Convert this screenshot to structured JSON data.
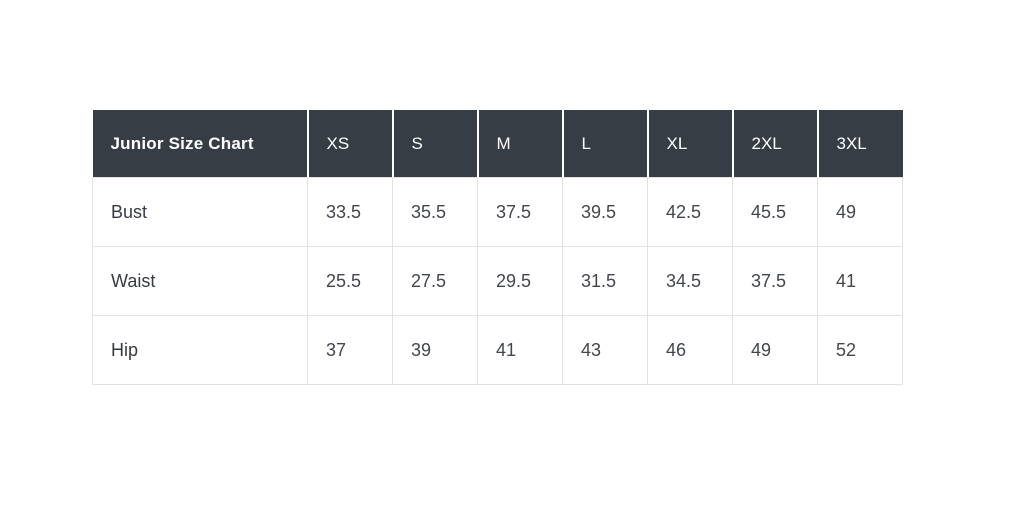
{
  "table": {
    "title": "Junior Size Chart",
    "columns": [
      "XS",
      "S",
      "M",
      "L",
      "XL",
      "2XL",
      "3XL"
    ],
    "rows": [
      {
        "label": "Bust",
        "values": [
          "33.5",
          "35.5",
          "37.5",
          "39.5",
          "42.5",
          "45.5",
          "49"
        ]
      },
      {
        "label": "Waist",
        "values": [
          "25.5",
          "27.5",
          "29.5",
          "31.5",
          "34.5",
          "37.5",
          "41"
        ]
      },
      {
        "label": "Hip",
        "values": [
          "37",
          "39",
          "41",
          "43",
          "46",
          "49",
          "52"
        ]
      }
    ]
  },
  "colors": {
    "header_bg": "#363d45",
    "header_text": "#ffffff",
    "body_text": "#42464d",
    "row_label_text": "#363b42",
    "body_border": "#e2e2e2",
    "header_separator": "#ffffff",
    "page_bg": "#ffffff"
  },
  "chart_data": {
    "type": "table",
    "title": "Junior Size Chart",
    "categories": [
      "XS",
      "S",
      "M",
      "L",
      "XL",
      "2XL",
      "3XL"
    ],
    "series": [
      {
        "name": "Bust",
        "values": [
          33.5,
          35.5,
          37.5,
          39.5,
          42.5,
          45.5,
          49
        ]
      },
      {
        "name": "Waist",
        "values": [
          25.5,
          27.5,
          29.5,
          31.5,
          34.5,
          37.5,
          41
        ]
      },
      {
        "name": "Hip",
        "values": [
          37,
          39,
          41,
          43,
          46,
          49,
          52
        ]
      }
    ]
  }
}
